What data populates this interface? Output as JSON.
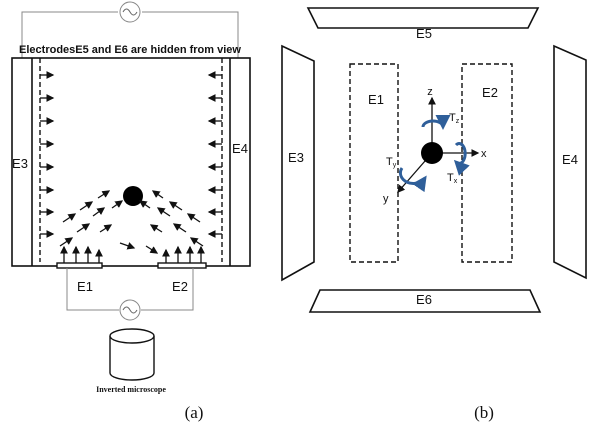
{
  "panel_a": {
    "hidden_note": "ElectrodesE5 and E6 are hidden from view",
    "labels": {
      "e1": "E1",
      "e2": "E2",
      "e3": "E3",
      "e4": "E4"
    },
    "microscope": "Inverted microscope",
    "caption": "(a)"
  },
  "panel_b": {
    "labels": {
      "e1": "E1",
      "e2": "E2",
      "e3": "E3",
      "e4": "E4",
      "e5": "E5",
      "e6": "E6"
    },
    "axes": {
      "x": "x",
      "y": "y",
      "z": "z"
    },
    "torques": {
      "tx": "T",
      "tx_sub": "x",
      "ty": "T",
      "ty_sub": "y",
      "tz": "T",
      "tz_sub": "z"
    },
    "caption": "(b)"
  },
  "colors": {
    "rotation_arrow": "#2f5f9a",
    "wire": "#888888"
  }
}
